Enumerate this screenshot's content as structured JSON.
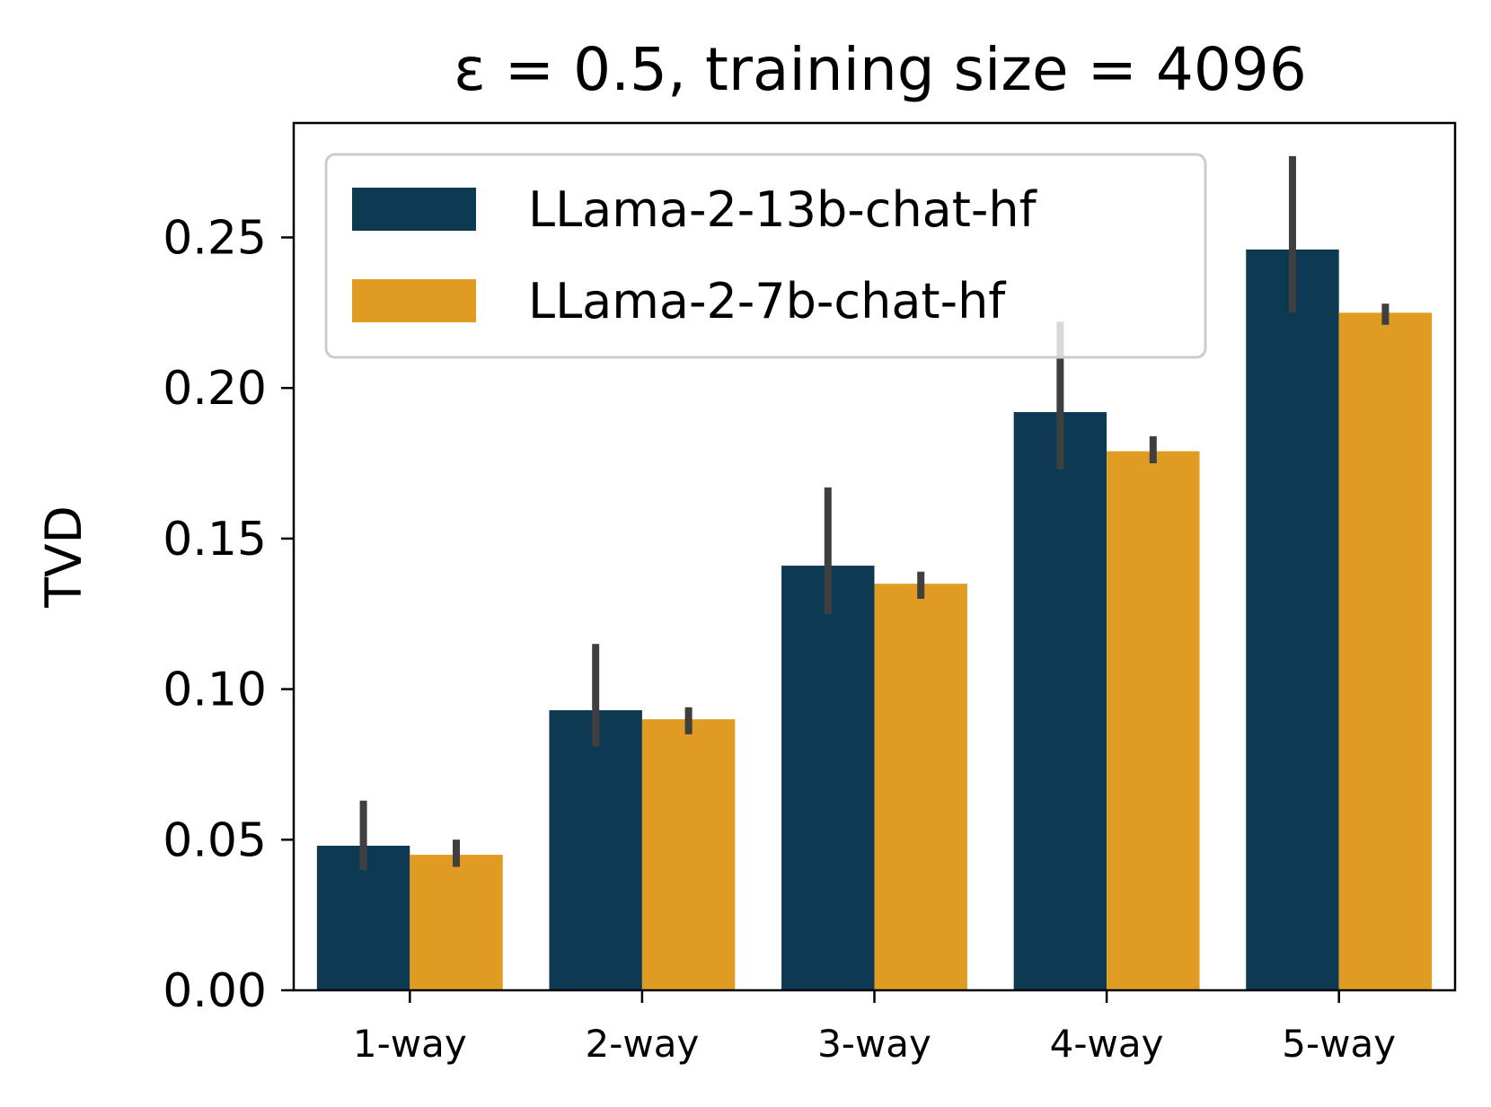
{
  "chart_data": {
    "type": "bar",
    "title": "ε = 0.5, training size = 4096",
    "xlabel": "",
    "ylabel": "TVD",
    "categories": [
      "1-way",
      "2-way",
      "3-way",
      "4-way",
      "5-way"
    ],
    "ylim": [
      0,
      0.288
    ],
    "yticks": [
      0.0,
      0.05,
      0.1,
      0.15,
      0.2,
      0.25
    ],
    "ytick_labels": [
      "0.00",
      "0.05",
      "0.10",
      "0.15",
      "0.20",
      "0.25"
    ],
    "legend_position": "top-left",
    "series": [
      {
        "name": "LLama-2-13b-chat-hf",
        "color": "#0d3a52",
        "values": [
          0.048,
          0.093,
          0.141,
          0.192,
          0.246
        ],
        "error_low": [
          0.04,
          0.081,
          0.125,
          0.173,
          0.225
        ],
        "error_high": [
          0.063,
          0.115,
          0.167,
          0.222,
          0.277
        ]
      },
      {
        "name": "LLama-2-7b-chat-hf",
        "color": "#e09c22",
        "values": [
          0.045,
          0.09,
          0.135,
          0.179,
          0.225
        ],
        "error_low": [
          0.041,
          0.085,
          0.13,
          0.175,
          0.221
        ],
        "error_high": [
          0.05,
          0.094,
          0.139,
          0.184,
          0.228
        ]
      }
    ],
    "errorbar_color": "#3f3f3f"
  }
}
